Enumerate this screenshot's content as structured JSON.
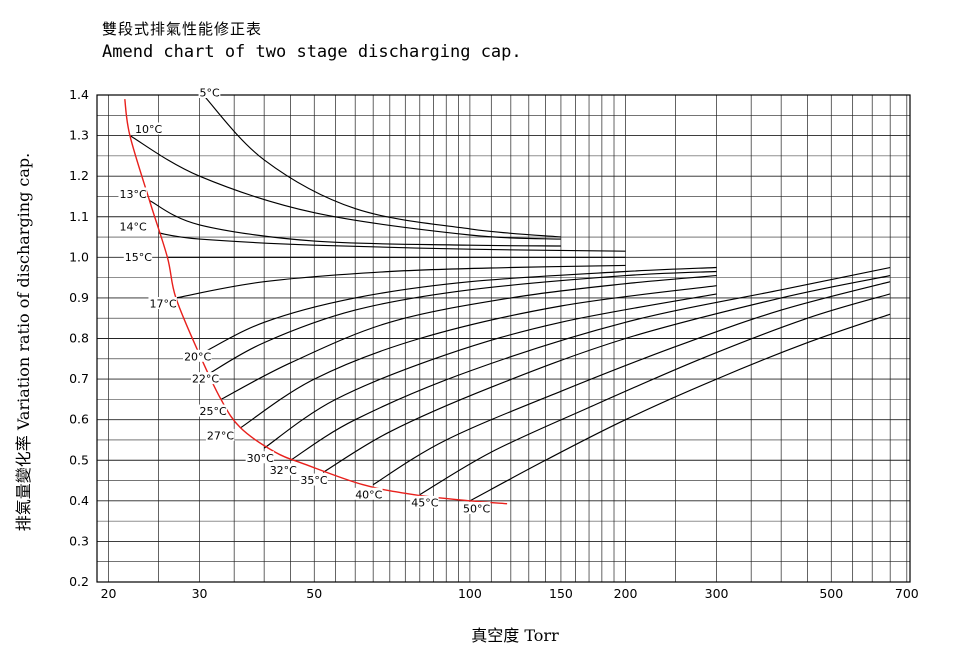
{
  "chart_data": {
    "type": "line",
    "title_zh": "雙段式排氣性能修正表",
    "title": "Amend chart of two stage discharging cap.",
    "xlabel": "真空度 Torr",
    "ylabel": "排氣量變化率 Variation ratio of discharging cap.",
    "x_scale": "log",
    "xlim": [
      19,
      710
    ],
    "ylim": [
      0.2,
      1.4
    ],
    "grid": true,
    "x_ticks": [
      20,
      30,
      50,
      100,
      150,
      200,
      300,
      500,
      700
    ],
    "x_tick_labels": [
      "20",
      "30",
      "50",
      "100",
      "150",
      "200",
      "300",
      "500",
      "700"
    ],
    "y_ticks": [
      0.2,
      0.3,
      0.4,
      0.5,
      0.6,
      0.7,
      0.8,
      0.9,
      1.0,
      1.1,
      1.2,
      1.3,
      1.4
    ],
    "y_tick_labels": [
      "0.2",
      "0.3",
      "0.4",
      "0.5",
      "0.6",
      "0.7",
      "0.8",
      "0.9",
      "1.0",
      "1.1",
      "1.2",
      "1.3",
      "1.4"
    ],
    "boundary_curve": {
      "color": "#e8201c",
      "points": [
        [
          21.5,
          1.39
        ],
        [
          22,
          1.3
        ],
        [
          24,
          1.14
        ],
        [
          26,
          1.0
        ],
        [
          27,
          0.9
        ],
        [
          30,
          0.76
        ],
        [
          33,
          0.65
        ],
        [
          36,
          0.58
        ],
        [
          42,
          0.52
        ],
        [
          48,
          0.49
        ],
        [
          62,
          0.44
        ],
        [
          78,
          0.415
        ],
        [
          100,
          0.4
        ],
        [
          118,
          0.393
        ]
      ]
    },
    "series": [
      {
        "name": "5°C",
        "label_at": [
          30,
          1.4
        ],
        "points": [
          [
            30.5,
            1.4
          ],
          [
            40,
            1.24
          ],
          [
            60,
            1.12
          ],
          [
            100,
            1.07
          ],
          [
            150,
            1.05
          ]
        ]
      },
      {
        "name": "10°C",
        "label_at": [
          22.5,
          1.31
        ],
        "points": [
          [
            22,
            1.3
          ],
          [
            30,
            1.2
          ],
          [
            50,
            1.11
          ],
          [
            100,
            1.055
          ],
          [
            150,
            1.045
          ]
        ]
      },
      {
        "name": "13°C",
        "label_at": [
          21,
          1.15
        ],
        "points": [
          [
            24,
            1.14
          ],
          [
            30,
            1.08
          ],
          [
            50,
            1.04
          ],
          [
            100,
            1.03
          ],
          [
            150,
            1.028
          ]
        ]
      },
      {
        "name": "14°C",
        "label_at": [
          21,
          1.07
        ],
        "points": [
          [
            25,
            1.06
          ],
          [
            30,
            1.045
          ],
          [
            50,
            1.03
          ],
          [
            100,
            1.02
          ],
          [
            200,
            1.015
          ]
        ]
      },
      {
        "name": "15°C",
        "label_at": [
          21.5,
          0.995
        ],
        "points": [
          [
            26,
            1.0
          ],
          [
            40,
            1.0
          ],
          [
            100,
            1.0
          ],
          [
            200,
            1.0
          ]
        ]
      },
      {
        "name": "17°C",
        "label_at": [
          24,
          0.88
        ],
        "points": [
          [
            27,
            0.9
          ],
          [
            40,
            0.94
          ],
          [
            70,
            0.965
          ],
          [
            120,
            0.975
          ],
          [
            200,
            0.98
          ]
        ]
      },
      {
        "name": "20°C",
        "label_at": [
          28,
          0.75
        ],
        "points": [
          [
            30,
            0.76
          ],
          [
            40,
            0.84
          ],
          [
            60,
            0.9
          ],
          [
            100,
            0.94
          ],
          [
            200,
            0.965
          ],
          [
            300,
            0.975
          ]
        ]
      },
      {
        "name": "22°C",
        "label_at": [
          29,
          0.695
        ],
        "points": [
          [
            31,
            0.71
          ],
          [
            40,
            0.79
          ],
          [
            60,
            0.87
          ],
          [
            100,
            0.92
          ],
          [
            200,
            0.955
          ],
          [
            300,
            0.965
          ]
        ]
      },
      {
        "name": "25°C",
        "label_at": [
          30,
          0.615
        ],
        "points": [
          [
            33,
            0.65
          ],
          [
            45,
            0.74
          ],
          [
            70,
            0.84
          ],
          [
            120,
            0.9
          ],
          [
            200,
            0.935
          ],
          [
            300,
            0.955
          ]
        ]
      },
      {
        "name": "27°C",
        "label_at": [
          31,
          0.555
        ],
        "points": [
          [
            36,
            0.58
          ],
          [
            50,
            0.7
          ],
          [
            80,
            0.8
          ],
          [
            150,
            0.88
          ],
          [
            300,
            0.93
          ]
        ]
      },
      {
        "name": "30°C",
        "label_at": [
          37,
          0.5
        ],
        "points": [
          [
            40,
            0.53
          ],
          [
            55,
            0.65
          ],
          [
            90,
            0.76
          ],
          [
            150,
            0.84
          ],
          [
            300,
            0.91
          ]
        ]
      },
      {
        "name": "32°C",
        "label_at": [
          41,
          0.47
        ],
        "points": [
          [
            45,
            0.5
          ],
          [
            60,
            0.6
          ],
          [
            100,
            0.72
          ],
          [
            200,
            0.84
          ],
          [
            400,
            0.92
          ],
          [
            650,
            0.975
          ]
        ]
      },
      {
        "name": "35°C",
        "label_at": [
          47,
          0.445
        ],
        "points": [
          [
            52,
            0.47
          ],
          [
            70,
            0.57
          ],
          [
            110,
            0.68
          ],
          [
            200,
            0.8
          ],
          [
            400,
            0.9
          ],
          [
            650,
            0.955
          ]
        ]
      },
      {
        "name": "40°C",
        "label_at": [
          60,
          0.41
        ],
        "points": [
          [
            65,
            0.44
          ],
          [
            90,
            0.55
          ],
          [
            150,
            0.67
          ],
          [
            250,
            0.78
          ],
          [
            400,
            0.87
          ],
          [
            650,
            0.94
          ]
        ]
      },
      {
        "name": "45°C",
        "label_at": [
          77,
          0.39
        ],
        "points": [
          [
            80,
            0.415
          ],
          [
            110,
            0.52
          ],
          [
            170,
            0.63
          ],
          [
            280,
            0.75
          ],
          [
            450,
            0.85
          ],
          [
            650,
            0.91
          ]
        ]
      },
      {
        "name": "50°C",
        "label_at": [
          97,
          0.375
        ],
        "points": [
          [
            100,
            0.4
          ],
          [
            140,
            0.5
          ],
          [
            200,
            0.6
          ],
          [
            300,
            0.7
          ],
          [
            450,
            0.79
          ],
          [
            650,
            0.86
          ]
        ]
      }
    ]
  }
}
